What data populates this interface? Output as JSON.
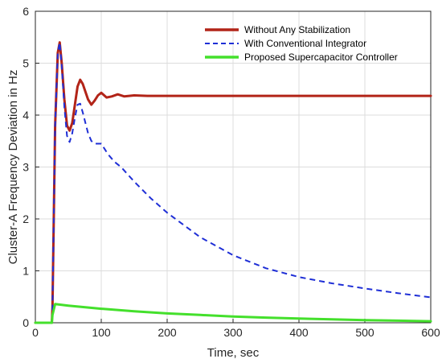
{
  "chart_data": {
    "type": "line",
    "xlabel": "Time, sec",
    "ylabel": "Cluster-A Frequency Deviation in Hz",
    "xlim": [
      0,
      600
    ],
    "ylim": [
      0,
      6
    ],
    "xticks": [
      0,
      100,
      200,
      300,
      400,
      500,
      600
    ],
    "yticks": [
      0,
      1,
      2,
      3,
      4,
      5,
      6
    ],
    "grid": true,
    "legend_position": "top-right",
    "series": [
      {
        "name": "Without Any Stabilization",
        "color": "#b22418",
        "style": "solid",
        "x": [
          0,
          25,
          26,
          30,
          34,
          37,
          40,
          44,
          48,
          52,
          56,
          60,
          64,
          68,
          72,
          76,
          80,
          85,
          90,
          95,
          100,
          108,
          116,
          125,
          135,
          150,
          170,
          200,
          300,
          400,
          500,
          600
        ],
        "y": [
          0,
          0,
          0.3,
          3.8,
          5.2,
          5.4,
          5.0,
          4.3,
          3.8,
          3.7,
          3.85,
          4.2,
          4.55,
          4.68,
          4.6,
          4.45,
          4.3,
          4.2,
          4.28,
          4.38,
          4.43,
          4.34,
          4.36,
          4.4,
          4.36,
          4.38,
          4.37,
          4.37,
          4.37,
          4.37,
          4.37,
          4.37
        ]
      },
      {
        "name": "With Conventional Integrator",
        "color": "#1f2fd6",
        "style": "dashed",
        "x": [
          0,
          25,
          26,
          30,
          34,
          37,
          40,
          44,
          48,
          52,
          56,
          60,
          64,
          68,
          72,
          76,
          80,
          85,
          90,
          95,
          100,
          105,
          110,
          120,
          130,
          150,
          175,
          200,
          250,
          300,
          350,
          400,
          450,
          500,
          550,
          600
        ],
        "y": [
          0,
          0,
          0.3,
          3.8,
          5.2,
          5.4,
          4.95,
          4.15,
          3.6,
          3.48,
          3.65,
          3.95,
          4.2,
          4.22,
          4.05,
          3.85,
          3.65,
          3.5,
          3.45,
          3.45,
          3.45,
          3.35,
          3.25,
          3.1,
          3.0,
          2.72,
          2.4,
          2.12,
          1.65,
          1.3,
          1.05,
          0.88,
          0.76,
          0.66,
          0.57,
          0.49
        ]
      },
      {
        "name": "Proposed Supercapacitor Controller",
        "color": "#44e02c",
        "style": "solid",
        "x": [
          0,
          25,
          26,
          30,
          50,
          100,
          150,
          200,
          250,
          300,
          350,
          400,
          450,
          500,
          550,
          600
        ],
        "y": [
          0,
          0,
          0.15,
          0.36,
          0.33,
          0.27,
          0.22,
          0.18,
          0.15,
          0.12,
          0.1,
          0.08,
          0.065,
          0.05,
          0.04,
          0.03
        ]
      }
    ]
  }
}
